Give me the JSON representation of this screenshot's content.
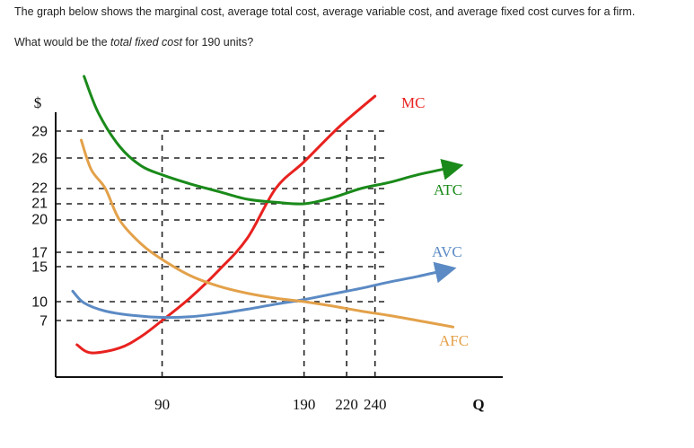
{
  "question": {
    "line1": "The graph below shows the marginal cost, average total cost, average variable cost, and average fixed cost curves for a firm.",
    "line2_pre": "What would be the ",
    "line2_em": "total fixed cost",
    "line2_post": " for 190 units?"
  },
  "chart_data": {
    "type": "line",
    "ylabel": "$",
    "xlabel": "Q",
    "y_ticks": [
      29,
      26,
      22,
      21,
      20,
      17,
      15,
      10,
      7
    ],
    "x_ticks": [
      90,
      190,
      220,
      240
    ],
    "xlim": [
      15,
      330
    ],
    "ylim": [
      0,
      33
    ],
    "grid": "dashed reference lines at tick values",
    "series": [
      {
        "name": "MC",
        "color": "#e8221f",
        "points": [
          [
            30,
            4
          ],
          [
            40,
            3
          ],
          [
            60,
            3.6
          ],
          [
            75,
            5
          ],
          [
            90,
            7
          ],
          [
            110,
            10.6
          ],
          [
            130,
            14.5
          ],
          [
            150,
            18.3
          ],
          [
            170,
            22
          ],
          [
            190,
            25.5
          ],
          [
            215,
            29.5
          ],
          [
            240,
            32.8
          ]
        ]
      },
      {
        "name": "ATC",
        "color": "#1a8a1a",
        "points": [
          [
            35,
            35
          ],
          [
            45,
            31
          ],
          [
            60,
            27.3
          ],
          [
            75,
            25
          ],
          [
            90,
            23.8
          ],
          [
            110,
            22.6
          ],
          [
            130,
            21.8
          ],
          [
            150,
            21.3
          ],
          [
            170,
            21.1
          ],
          [
            190,
            21
          ],
          [
            210,
            21.4
          ],
          [
            230,
            22
          ],
          [
            250,
            22.8
          ],
          [
            270,
            23.8
          ],
          [
            295,
            24.8
          ]
        ]
      },
      {
        "name": "AVC",
        "color": "#5b8ac4",
        "points": [
          [
            27,
            11.5
          ],
          [
            35,
            9.8
          ],
          [
            50,
            8.5
          ],
          [
            70,
            7.8
          ],
          [
            90,
            7.5
          ],
          [
            110,
            7.6
          ],
          [
            130,
            8.1
          ],
          [
            150,
            8.8
          ],
          [
            170,
            9.6
          ],
          [
            190,
            10.3
          ],
          [
            210,
            11.1
          ],
          [
            230,
            11.9
          ],
          [
            250,
            12.8
          ],
          [
            270,
            13.6
          ],
          [
            290,
            14.5
          ]
        ]
      },
      {
        "name": "AFC",
        "color": "#e3a14a",
        "points": [
          [
            33,
            28
          ],
          [
            40,
            24.5
          ],
          [
            50,
            22
          ],
          [
            60,
            20
          ],
          [
            75,
            17.8
          ],
          [
            90,
            16
          ],
          [
            110,
            13.7
          ],
          [
            130,
            12.2
          ],
          [
            150,
            11.2
          ],
          [
            170,
            10.5
          ],
          [
            190,
            10
          ],
          [
            210,
            9.3
          ],
          [
            230,
            8.5
          ],
          [
            250,
            7.8
          ],
          [
            270,
            7
          ],
          [
            295,
            6.2
          ]
        ]
      }
    ],
    "annotations": {
      "MC": {
        "text": "MC",
        "color": "#e8221f"
      },
      "ATC": {
        "text": "ATC",
        "color": "#1a8a1a"
      },
      "AVC": {
        "text": "AVC",
        "color": "#5b8ac4"
      },
      "AFC": {
        "text": "AFC",
        "color": "#e3a14a"
      }
    }
  }
}
